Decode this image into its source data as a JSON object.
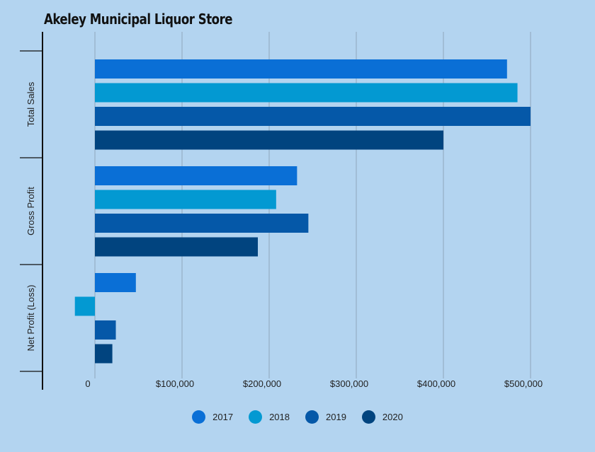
{
  "chart_data": {
    "type": "bar",
    "orientation": "horizontal",
    "title": "Akeley Municipal Liquor Store",
    "categories": [
      "Total Sales",
      "Gross Profit",
      "Net Profit (Loss)"
    ],
    "series": [
      {
        "name": "2017",
        "color": "#0a6fd6",
        "values": [
          473000,
          232000,
          47000
        ]
      },
      {
        "name": "2018",
        "color": "#0399d2",
        "values": [
          485000,
          208000,
          -23000
        ]
      },
      {
        "name": "2019",
        "color": "#0558a8",
        "values": [
          500000,
          245000,
          24000
        ]
      },
      {
        "name": "2020",
        "color": "#01447f",
        "values": [
          400000,
          187000,
          20000
        ]
      }
    ],
    "xlim": [
      -60000,
      540000
    ],
    "x_ticks": [
      {
        "value": 0,
        "label": "0"
      },
      {
        "value": 100000,
        "label": "$100,000"
      },
      {
        "value": 200000,
        "label": "$200,000"
      },
      {
        "value": 300000,
        "label": "$300,000"
      },
      {
        "value": 400000,
        "label": "$400,000"
      },
      {
        "value": 500000,
        "label": "$500,000"
      }
    ],
    "grid": true,
    "legend_position": "bottom-center",
    "axis_color": "#111111",
    "grid_color": "#8fa6bd",
    "background": "#b3d4f0"
  }
}
